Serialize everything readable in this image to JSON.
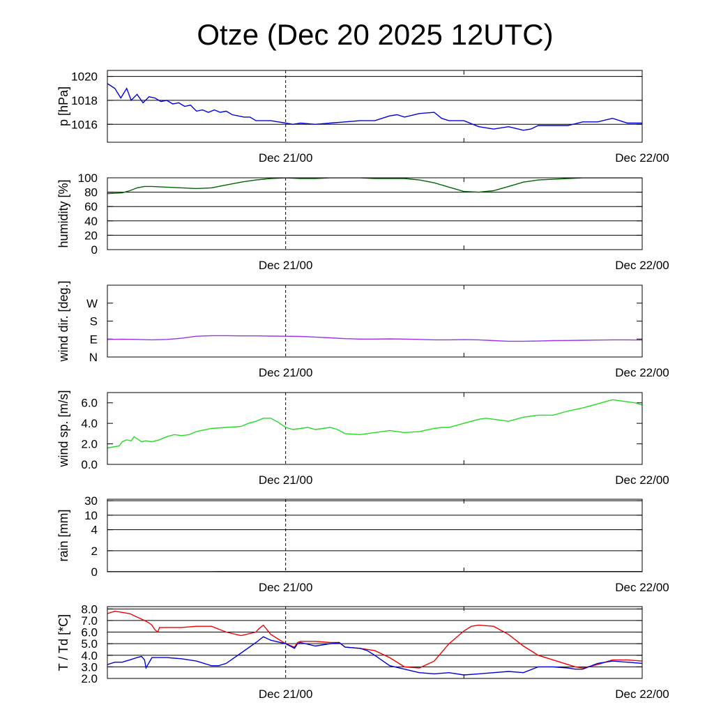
{
  "title": "Otze (Dec 20 2025 12UTC)",
  "chart_data": [
    {
      "type": "line",
      "id": "pressure",
      "ylabel": "p [hPa]",
      "ylim": [
        1014.5,
        1020.5
      ],
      "scale": "linear",
      "yticks": [
        1016,
        1018,
        1020
      ],
      "ytick_labels": [
        "1016",
        "1018",
        "1020"
      ],
      "grid_y": [
        1016,
        1018,
        1020
      ],
      "xlim": [
        0,
        36
      ],
      "xticks": [
        {
          "x": 12,
          "label": "Dec 21/00"
        },
        {
          "x": 36,
          "label": "Dec 22/00"
        }
      ],
      "series": [
        {
          "color": "#0000dd",
          "x": [
            0,
            0.5,
            0.9,
            1.3,
            1.6,
            2,
            2.4,
            2.8,
            3.2,
            3.6,
            4,
            4.4,
            4.8,
            5.2,
            5.6,
            6,
            6.4,
            6.8,
            7.2,
            7.6,
            8,
            8.4,
            8.8,
            9.2,
            9.6,
            10,
            10.5,
            11,
            11.5,
            12,
            12.5,
            13,
            14,
            15,
            16,
            17,
            18,
            19,
            19.5,
            20,
            21,
            22,
            22.5,
            23,
            24,
            25,
            26,
            27,
            28,
            28.5,
            29,
            30,
            31,
            32,
            33,
            34,
            35,
            36
          ],
          "y": [
            1019.4,
            1019.0,
            1018.2,
            1019.0,
            1018.0,
            1018.5,
            1017.8,
            1018.3,
            1018.2,
            1017.9,
            1018.0,
            1017.7,
            1017.8,
            1017.5,
            1017.6,
            1017.1,
            1017.2,
            1017.0,
            1017.2,
            1017.0,
            1017.1,
            1016.8,
            1016.7,
            1016.6,
            1016.6,
            1016.3,
            1016.3,
            1016.3,
            1016.2,
            1016.1,
            1016.0,
            1016.1,
            1016.0,
            1016.1,
            1016.2,
            1016.3,
            1016.3,
            1016.7,
            1016.8,
            1016.6,
            1016.9,
            1017.0,
            1016.5,
            1016.3,
            1016.3,
            1015.8,
            1015.6,
            1015.8,
            1015.5,
            1015.6,
            1015.9,
            1015.9,
            1015.9,
            1016.2,
            1016.2,
            1016.5,
            1016.1,
            1016.1
          ]
        }
      ]
    },
    {
      "type": "line",
      "id": "humidity",
      "ylabel": "humidity [%]",
      "ylim": [
        0,
        100
      ],
      "scale": "linear",
      "yticks": [
        0,
        20,
        40,
        60,
        80,
        100
      ],
      "ytick_labels": [
        "0",
        "20",
        "40",
        "60",
        "80",
        "100"
      ],
      "grid_y": [
        20,
        40,
        60,
        80,
        100
      ],
      "xlim": [
        0,
        36
      ],
      "xticks": [
        {
          "x": 12,
          "label": "Dec 21/00"
        },
        {
          "x": 36,
          "label": "Dec 22/00"
        }
      ],
      "series": [
        {
          "color": "#006400",
          "x": [
            0,
            1,
            1.5,
            2,
            2.5,
            3,
            4,
            5,
            6,
            7,
            8,
            9,
            10,
            11,
            12,
            13,
            14,
            15,
            16,
            17,
            18,
            19,
            20,
            21,
            22,
            23,
            24,
            25,
            26,
            27,
            28,
            29,
            30,
            31,
            32,
            33,
            34,
            35,
            36
          ],
          "y": [
            78,
            79,
            82,
            86,
            88,
            88,
            87,
            86,
            85,
            86,
            90,
            94,
            97,
            99,
            100,
            99,
            99,
            100,
            100,
            100,
            99,
            99,
            99,
            97,
            93,
            87,
            81,
            80,
            82,
            88,
            94,
            97,
            98,
            99,
            100,
            100,
            100,
            100,
            100
          ]
        }
      ]
    },
    {
      "type": "line",
      "id": "wind_direction",
      "ylabel": "wind dir. [deg.]",
      "ylim": [
        0,
        360
      ],
      "scale": "linear",
      "yticks": [
        0,
        90,
        180,
        270
      ],
      "ytick_labels": [
        "N",
        "E",
        "S",
        "W"
      ],
      "grid_y": [],
      "xlim": [
        0,
        36
      ],
      "xticks": [
        {
          "x": 12,
          "label": "Dec 21/00"
        },
        {
          "x": 36,
          "label": "Dec 22/00"
        }
      ],
      "series": [
        {
          "color": "#9933ee",
          "x": [
            0,
            1,
            2,
            3,
            4,
            5,
            6,
            7,
            8,
            9,
            10,
            11,
            12,
            13,
            14,
            15,
            16,
            17,
            18,
            19,
            20,
            21,
            22,
            23,
            24,
            25,
            26,
            27,
            28,
            29,
            30,
            31,
            32,
            33,
            34,
            35,
            36
          ],
          "y": [
            88,
            89,
            88,
            86,
            88,
            94,
            104,
            107,
            107,
            106,
            106,
            105,
            104,
            103,
            100,
            96,
            92,
            90,
            90,
            91,
            90,
            88,
            86,
            86,
            87,
            86,
            82,
            79,
            79,
            80,
            82,
            83,
            84,
            85,
            86,
            86,
            85
          ]
        }
      ]
    },
    {
      "type": "line",
      "id": "wind_speed",
      "ylabel": "wind sp. [m/s]",
      "ylim": [
        0,
        7
      ],
      "scale": "linear",
      "yticks": [
        0,
        2,
        4,
        6
      ],
      "ytick_labels": [
        "0.0",
        "2.0",
        "4.0",
        "6.0"
      ],
      "grid_y": [],
      "xlim": [
        0,
        36
      ],
      "xticks": [
        {
          "x": 12,
          "label": "Dec 21/00"
        },
        {
          "x": 36,
          "label": "Dec 22/00"
        }
      ],
      "series": [
        {
          "color": "#22dd22",
          "x": [
            0,
            0.4,
            0.8,
            1,
            1.3,
            1.6,
            1.8,
            2,
            2.3,
            2.6,
            3,
            3.5,
            4,
            4.5,
            5,
            5.5,
            6,
            7,
            8,
            9,
            9.5,
            10,
            10.5,
            11,
            11.5,
            12,
            12.5,
            13,
            13.5,
            14,
            14.5,
            15,
            15.5,
            16,
            17,
            18,
            19,
            20,
            21,
            22,
            22.5,
            23,
            24,
            25,
            25.5,
            26,
            27,
            28,
            29,
            30,
            31,
            32,
            33,
            33.5,
            34,
            35,
            35.5,
            36
          ],
          "y": [
            1.6,
            1.7,
            1.8,
            2.2,
            2.4,
            2.3,
            2.7,
            2.5,
            2.2,
            2.3,
            2.2,
            2.4,
            2.7,
            2.9,
            2.8,
            2.9,
            3.2,
            3.5,
            3.6,
            3.7,
            4.0,
            4.2,
            4.5,
            4.5,
            4.1,
            3.6,
            3.4,
            3.5,
            3.6,
            3.4,
            3.5,
            3.6,
            3.4,
            3.0,
            2.9,
            3.1,
            3.3,
            3.1,
            3.2,
            3.5,
            3.6,
            3.6,
            4.0,
            4.4,
            4.5,
            4.4,
            4.2,
            4.6,
            4.8,
            4.8,
            5.2,
            5.5,
            5.9,
            6.1,
            6.3,
            6.1,
            6.0,
            5.8
          ]
        }
      ]
    },
    {
      "type": "line",
      "id": "rain",
      "ylabel": "rain [mm]",
      "ylim": [
        0,
        30
      ],
      "scale": "custom",
      "yticks": [
        0,
        2,
        4,
        10,
        30
      ],
      "ytick_labels": [
        "0",
        "2",
        "4",
        "10",
        "30"
      ],
      "grid_y": [
        2,
        4,
        10,
        30
      ],
      "xlim": [
        0,
        36
      ],
      "xticks": [
        {
          "x": 12,
          "label": "Dec 21/00"
        },
        {
          "x": 36,
          "label": "Dec 22/00"
        }
      ],
      "series": [
        {
          "color": "#008800",
          "x": [
            0,
            7,
            7.5,
            36
          ],
          "y": [
            0,
            0,
            0.02,
            0.02
          ]
        },
        {
          "color": "#0000dd",
          "x": [
            0,
            36
          ],
          "y": [
            0,
            0
          ]
        }
      ]
    },
    {
      "type": "line",
      "id": "temperature",
      "ylabel": "T / Td [*C]",
      "ylim": [
        2,
        8.2
      ],
      "scale": "linear",
      "yticks": [
        2,
        3,
        4,
        5,
        6,
        7,
        8
      ],
      "ytick_labels": [
        "2.0",
        "3.0",
        "4.0",
        "5.0",
        "6.0",
        "7.0",
        "8.0"
      ],
      "grid_y": [
        3,
        4,
        5,
        6,
        7,
        8
      ],
      "xlim": [
        0,
        36
      ],
      "xticks": [
        {
          "x": 12,
          "label": "Dec 21/00"
        },
        {
          "x": 36,
          "label": "Dec 22/00"
        }
      ],
      "series": [
        {
          "color": "#ee0000",
          "x": [
            0,
            0.5,
            1,
            1.5,
            2,
            2.5,
            2.8,
            3,
            3.2,
            3.4,
            3.5,
            4,
            5,
            6,
            7,
            8,
            9,
            10,
            10.2,
            10.5,
            11,
            12,
            12.6,
            12.8,
            13,
            14,
            15,
            15.6,
            16,
            17,
            18,
            19,
            20,
            21,
            22,
            23,
            24,
            24.5,
            25,
            26,
            27,
            28,
            29,
            30,
            31,
            31.5,
            32,
            33,
            34,
            35,
            36
          ],
          "y": [
            7.6,
            7.8,
            7.7,
            7.6,
            7.3,
            7.0,
            6.8,
            6.6,
            6.2,
            6.0,
            6.4,
            6.4,
            6.4,
            6.5,
            6.5,
            6.0,
            5.7,
            6.0,
            6.3,
            6.6,
            5.8,
            5.0,
            4.7,
            5.1,
            5.2,
            5.2,
            5.1,
            5.1,
            4.7,
            4.6,
            4.4,
            3.8,
            3.0,
            2.9,
            3.5,
            5.0,
            6.1,
            6.5,
            6.6,
            6.5,
            5.8,
            4.8,
            4.0,
            3.6,
            3.2,
            3.0,
            2.9,
            3.2,
            3.6,
            3.6,
            3.5
          ]
        },
        {
          "color": "#0000dd",
          "x": [
            0,
            0.5,
            1,
            1.5,
            2,
            2.3,
            2.5,
            2.6,
            3,
            4,
            5,
            6,
            7,
            7.5,
            8,
            9,
            10,
            10.5,
            11,
            12,
            12.6,
            12.8,
            13,
            14,
            15,
            15.6,
            16,
            17,
            17.5,
            18,
            19,
            20,
            21,
            22,
            23,
            24,
            25,
            26,
            27,
            28,
            29,
            30,
            31,
            31.5,
            32,
            33,
            34,
            35,
            36
          ],
          "y": [
            3.2,
            3.4,
            3.4,
            3.6,
            3.8,
            3.9,
            3.6,
            2.9,
            3.8,
            3.8,
            3.7,
            3.5,
            3.1,
            3.1,
            3.3,
            4.2,
            5.1,
            5.6,
            5.3,
            5.0,
            4.6,
            5.0,
            5.1,
            4.8,
            5.0,
            5.1,
            4.7,
            4.6,
            4.4,
            4.0,
            3.1,
            2.8,
            2.5,
            2.4,
            2.5,
            2.3,
            2.4,
            2.5,
            2.6,
            2.5,
            3.0,
            3.0,
            2.9,
            2.8,
            2.8,
            3.3,
            3.5,
            3.4,
            3.3
          ]
        }
      ]
    }
  ]
}
